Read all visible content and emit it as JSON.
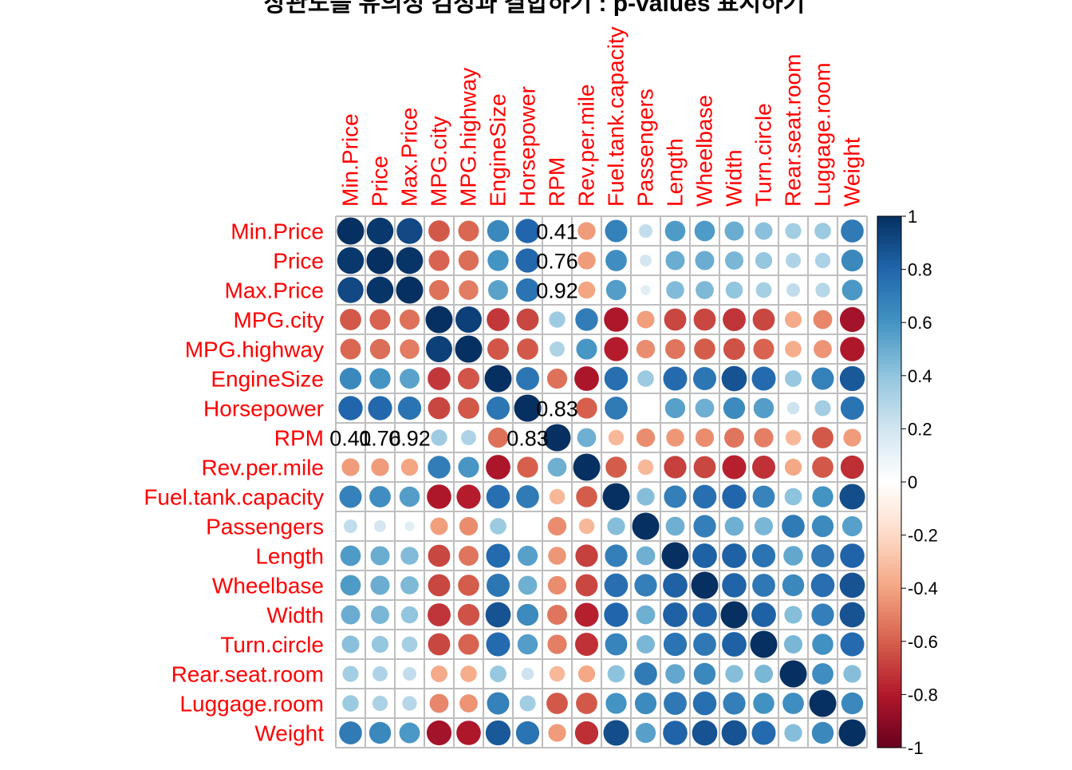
{
  "chart_data": {
    "type": "heatmap",
    "title": "상관도를 유의성 검정과 결합하기 : p-values 표시하기",
    "variables": [
      "Min.Price",
      "Price",
      "Max.Price",
      "MPG.city",
      "MPG.highway",
      "EngineSize",
      "Horsepower",
      "RPM",
      "Rev.per.mile",
      "Fuel.tank.capacity",
      "Passengers",
      "Length",
      "Wheelbase",
      "Width",
      "Turn.circle",
      "Rear.seat.room",
      "Luggage.room",
      "Weight"
    ],
    "matrix": [
      [
        1.0,
        0.97,
        0.91,
        -0.62,
        -0.58,
        0.65,
        0.8,
        -0.04,
        -0.43,
        0.68,
        0.25,
        0.57,
        0.57,
        0.5,
        0.42,
        0.35,
        0.37,
        0.71
      ],
      [
        0.97,
        1.0,
        0.98,
        -0.59,
        -0.56,
        0.6,
        0.79,
        -0.0,
        -0.43,
        0.62,
        0.19,
        0.5,
        0.5,
        0.46,
        0.39,
        0.31,
        0.32,
        0.65
      ],
      [
        0.91,
        0.98,
        1.0,
        -0.55,
        -0.52,
        0.54,
        0.74,
        0.03,
        -0.4,
        0.56,
        0.13,
        0.44,
        0.45,
        0.4,
        0.34,
        0.25,
        0.29,
        0.58
      ],
      [
        -0.62,
        -0.59,
        -0.55,
        1.0,
        0.94,
        -0.71,
        -0.67,
        0.36,
        0.7,
        -0.81,
        -0.42,
        -0.67,
        -0.67,
        -0.72,
        -0.67,
        -0.38,
        -0.49,
        -0.84
      ],
      [
        -0.58,
        -0.56,
        -0.52,
        0.94,
        1.0,
        -0.63,
        -0.62,
        0.31,
        0.59,
        -0.79,
        -0.47,
        -0.54,
        -0.61,
        -0.64,
        -0.59,
        -0.37,
        -0.45,
        -0.81
      ],
      [
        0.65,
        0.6,
        0.54,
        -0.71,
        -0.63,
        1.0,
        0.73,
        -0.55,
        -0.82,
        0.76,
        0.37,
        0.78,
        0.73,
        0.87,
        0.78,
        0.38,
        0.68,
        0.85
      ],
      [
        0.8,
        0.79,
        0.74,
        -0.67,
        -0.62,
        0.73,
        1.0,
        0.04,
        -0.6,
        0.71,
        0.01,
        0.55,
        0.49,
        0.64,
        0.56,
        0.21,
        0.35,
        0.74
      ],
      [
        -0.04,
        -0.0,
        0.03,
        0.36,
        0.31,
        -0.55,
        0.04,
        1.0,
        0.49,
        -0.33,
        -0.47,
        -0.44,
        -0.47,
        -0.54,
        -0.51,
        -0.33,
        -0.62,
        -0.43
      ],
      [
        -0.43,
        -0.43,
        -0.4,
        0.7,
        0.59,
        -0.82,
        -0.6,
        0.49,
        1.0,
        -0.61,
        -0.33,
        -0.69,
        -0.67,
        -0.78,
        -0.73,
        -0.39,
        -0.62,
        -0.74
      ],
      [
        0.68,
        0.62,
        0.56,
        -0.81,
        -0.79,
        0.76,
        0.71,
        -0.33,
        -0.61,
        1.0,
        0.43,
        0.69,
        0.76,
        0.8,
        0.67,
        0.41,
        0.6,
        0.89
      ],
      [
        0.25,
        0.19,
        0.13,
        -0.42,
        -0.47,
        0.37,
        0.01,
        -0.47,
        -0.33,
        0.43,
        1.0,
        0.49,
        0.69,
        0.49,
        0.46,
        0.71,
        0.64,
        0.55
      ],
      [
        0.57,
        0.5,
        0.44,
        -0.67,
        -0.54,
        0.78,
        0.55,
        -0.44,
        -0.69,
        0.69,
        0.49,
        1.0,
        0.82,
        0.82,
        0.74,
        0.52,
        0.72,
        0.81
      ],
      [
        0.57,
        0.5,
        0.45,
        -0.67,
        -0.61,
        0.73,
        0.49,
        -0.47,
        -0.67,
        0.76,
        0.69,
        0.82,
        1.0,
        0.81,
        0.72,
        0.65,
        0.76,
        0.87
      ],
      [
        0.5,
        0.46,
        0.4,
        -0.72,
        -0.64,
        0.87,
        0.64,
        -0.54,
        -0.78,
        0.8,
        0.49,
        0.82,
        0.81,
        1.0,
        0.82,
        0.43,
        0.69,
        0.87
      ],
      [
        0.42,
        0.39,
        0.34,
        -0.67,
        -0.59,
        0.78,
        0.56,
        -0.51,
        -0.73,
        0.67,
        0.46,
        0.74,
        0.72,
        0.82,
        1.0,
        0.46,
        0.61,
        0.78
      ],
      [
        0.35,
        0.31,
        0.25,
        -0.38,
        -0.37,
        0.38,
        0.21,
        -0.33,
        -0.39,
        0.41,
        0.71,
        0.52,
        0.65,
        0.43,
        0.46,
        1.0,
        0.62,
        0.43
      ],
      [
        0.37,
        0.32,
        0.29,
        -0.49,
        -0.45,
        0.68,
        0.35,
        -0.62,
        -0.62,
        0.6,
        0.64,
        0.72,
        0.76,
        0.69,
        0.61,
        0.62,
        1.0,
        0.65
      ],
      [
        0.71,
        0.65,
        0.58,
        -0.84,
        -0.81,
        0.85,
        0.74,
        -0.43,
        -0.74,
        0.89,
        0.55,
        0.81,
        0.87,
        0.87,
        0.78,
        0.43,
        0.65,
        1.0
      ]
    ],
    "p_value_labels": [
      {
        "row": 0,
        "col": 7,
        "text": "0.41"
      },
      {
        "row": 1,
        "col": 7,
        "text": "0.76"
      },
      {
        "row": 2,
        "col": 7,
        "text": "0.92"
      },
      {
        "row": 6,
        "col": 7,
        "text": "0.83"
      },
      {
        "row": 7,
        "col": 0,
        "text": "0.41"
      },
      {
        "row": 7,
        "col": 1,
        "text": "0.76"
      },
      {
        "row": 7,
        "col": 2,
        "text": "0.92"
      },
      {
        "row": 7,
        "col": 6,
        "text": "0.83"
      }
    ],
    "colorbar": {
      "range": [
        -1,
        1
      ],
      "ticks": [
        "1",
        "0.8",
        "0.6",
        "0.4",
        "0.2",
        "0",
        "-0.2",
        "-0.4",
        "-0.6",
        "-0.8",
        "-1"
      ],
      "tick_values": [
        1,
        0.8,
        0.6,
        0.4,
        0.2,
        0,
        -0.2,
        -0.4,
        -0.6,
        -0.8,
        -1
      ],
      "colors": [
        "#67001f",
        "#b2182b",
        "#d6604d",
        "#f4a582",
        "#fddbc7",
        "#ffffff",
        "#d1e5f0",
        "#92c5de",
        "#4393c3",
        "#2166ac",
        "#053061"
      ],
      "placement": "right"
    },
    "label_color": "#ff0000",
    "grid": true
  }
}
